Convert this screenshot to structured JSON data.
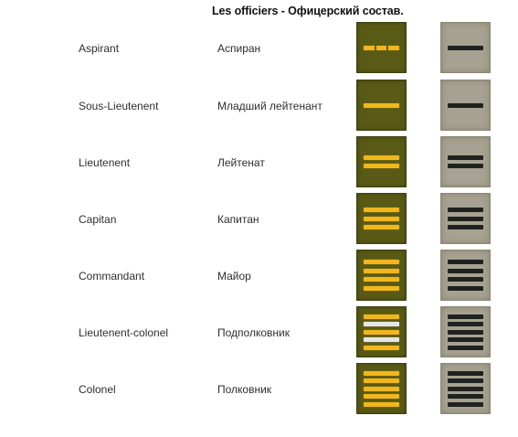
{
  "title": "Les officiers - Офицерский состав.",
  "ranks": [
    {
      "fr": "Aspirant",
      "ru": "Аспиран",
      "stripes": [
        "gold-split"
      ],
      "khaki_stripes": 1
    },
    {
      "fr": "Sous-Lieutenent",
      "ru": "Младший лейтенант",
      "stripes": [
        "gold"
      ],
      "khaki_stripes": 1
    },
    {
      "fr": "Lieutenent",
      "ru": "Лейтенат",
      "stripes": [
        "gold",
        "gold"
      ],
      "khaki_stripes": 2
    },
    {
      "fr": "Capitan",
      "ru": "Капитан",
      "stripes": [
        "gold",
        "gold",
        "gold"
      ],
      "khaki_stripes": 3
    },
    {
      "fr": "Commandant",
      "ru": "Майор",
      "stripes": [
        "gold",
        "gold",
        "gold",
        "gold"
      ],
      "khaki_stripes": 4
    },
    {
      "fr": "Lieutenent-colonel",
      "ru": "Подполковник",
      "stripes": [
        "gold",
        "silver",
        "gold",
        "silver",
        "gold"
      ],
      "khaki_stripes": 5
    },
    {
      "fr": "Colonel",
      "ru": "Полковник",
      "stripes": [
        "gold",
        "gold",
        "gold",
        "gold",
        "gold"
      ],
      "khaki_stripes": 5
    }
  ],
  "colors": {
    "insignia_green": "#595a15",
    "insignia_khaki": "#a7a291",
    "gold_stripe": "#f2b71c",
    "silver_stripe": "#e6e6e6",
    "dark_stripe": "#1f2220"
  }
}
